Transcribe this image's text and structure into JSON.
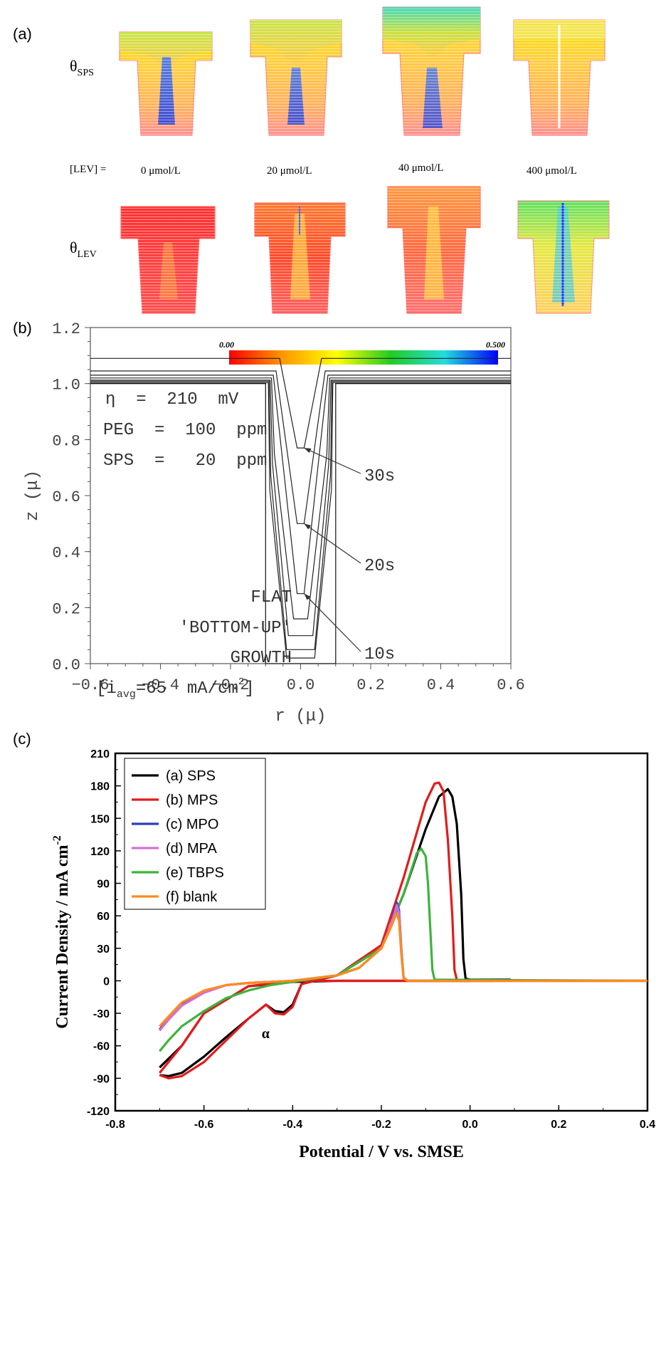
{
  "panel_a": {
    "label": "(a)",
    "row1_label": "θ",
    "row1_sub": "SPS",
    "row2_label": "θ",
    "row2_sub": "LEV",
    "lev_prefix": "[LEV] =",
    "concentrations": [
      "0 μmol/L",
      "20 μmol/L",
      "40 μmol/L",
      "400 μmol/L"
    ],
    "colorbar_min": "0.00",
    "colorbar_max": "0.500"
  },
  "panel_b": {
    "label": "(b)",
    "annot_eta": "η  =  210  mV",
    "annot_peg": "PEG  =  100  ppm",
    "annot_sps": "SPS  =   20  ppm",
    "annot_flat": "FLAT",
    "annot_bottomup": "'BOTTOM-UP'",
    "annot_growth": "GROWTH",
    "annot_iavg_prefix": "[i",
    "annot_iavg_sub": "avg",
    "annot_iavg_main": "=65  mA/cm",
    "annot_iavg_sup": "2",
    "annot_iavg_close": "]",
    "time_labels": [
      "30s",
      "20s",
      "10s"
    ]
  },
  "panel_c": {
    "label": "(c)",
    "alpha": "α"
  },
  "chart_data": [
    {
      "type": "line",
      "title": "",
      "xlabel": "r (μ)",
      "ylabel": "z (μ)",
      "xlim": [
        -0.6,
        0.6
      ],
      "ylim": [
        0.0,
        1.2
      ],
      "xticks": [
        "−0.6",
        "−0.4",
        "−0.2",
        "0.0",
        "0.2",
        "0.4",
        "0.6"
      ],
      "yticks": [
        "0.0",
        "0.2",
        "0.4",
        "0.6",
        "0.8",
        "1.0",
        "1.2"
      ],
      "grid": false,
      "series": [
        {
          "x": [
            -0.6,
            -0.1,
            -0.1,
            0.1,
            0.1,
            0.6
          ],
          "y": [
            1.0,
            1.0,
            0.0,
            0.0,
            1.0,
            1.0
          ]
        },
        {
          "x": [
            -0.6,
            -0.092,
            -0.088,
            -0.04,
            0.04,
            0.088,
            0.092,
            0.6
          ],
          "y": [
            1.003,
            1.003,
            0.62,
            0.02,
            0.02,
            0.62,
            1.003,
            1.003
          ]
        },
        {
          "x": [
            -0.6,
            -0.09,
            -0.085,
            -0.04,
            0.04,
            0.085,
            0.09,
            0.6
          ],
          "y": [
            1.008,
            1.008,
            0.67,
            0.05,
            0.05,
            0.67,
            1.008,
            1.008
          ]
        },
        {
          "x": [
            -0.6,
            -0.087,
            -0.08,
            -0.035,
            0.035,
            0.08,
            0.087,
            0.6
          ],
          "y": [
            1.012,
            1.012,
            0.71,
            0.1,
            0.1,
            0.71,
            1.012,
            1.012
          ]
        },
        {
          "x": [
            -0.6,
            -0.083,
            -0.075,
            -0.02,
            0.02,
            0.075,
            0.083,
            0.6
          ],
          "y": [
            1.02,
            1.02,
            0.75,
            0.16,
            0.16,
            0.75,
            1.02,
            1.02
          ]
        },
        {
          "x": [
            -0.6,
            -0.078,
            -0.01,
            0.01,
            0.078,
            0.6
          ],
          "y": [
            1.03,
            1.03,
            0.25,
            0.25,
            1.03,
            1.03
          ]
        },
        {
          "x": [
            -0.6,
            -0.07,
            -0.01,
            0.01,
            0.07,
            0.6
          ],
          "y": [
            1.045,
            1.045,
            0.5,
            0.5,
            1.045,
            1.045
          ]
        },
        {
          "x": [
            -0.6,
            -0.06,
            -0.01,
            0.01,
            0.06,
            0.6
          ],
          "y": [
            1.09,
            1.09,
            0.77,
            0.77,
            1.09,
            1.09
          ]
        }
      ]
    },
    {
      "type": "line",
      "title": "",
      "xlabel": "Potential / V vs. SMSE",
      "ylabel": "Current Density / mA cm",
      "ylabel_sup": "-2",
      "xlim": [
        -0.8,
        0.4
      ],
      "ylim": [
        -120,
        210
      ],
      "xticks": [
        "-0.8",
        "-0.6",
        "-0.4",
        "-0.2",
        "0.0",
        "0.2",
        "0.4"
      ],
      "yticks": [
        "-120",
        "-90",
        "-60",
        "-30",
        "0",
        "30",
        "60",
        "90",
        "120",
        "150",
        "180",
        "210"
      ],
      "grid": false,
      "legend_position": "top-left",
      "series": [
        {
          "name": "(a) SPS",
          "color": "#000000",
          "x": [
            -0.7,
            -0.68,
            -0.65,
            -0.6,
            -0.55,
            -0.5,
            -0.46,
            -0.44,
            -0.42,
            -0.4,
            -0.38,
            -0.3,
            -0.2,
            -0.15,
            -0.1,
            -0.07,
            -0.05,
            -0.04,
            -0.03,
            -0.02,
            -0.015,
            -0.01,
            0.0,
            0.05,
            0.09,
            0.05,
            0.0,
            -0.05,
            -0.1,
            -0.2,
            -0.3,
            -0.4,
            -0.5,
            -0.6,
            -0.65,
            -0.7
          ],
          "y": [
            -87,
            -88,
            -85,
            -70,
            -52,
            -35,
            -22,
            -28,
            -29,
            -22,
            -3,
            5,
            30,
            80,
            140,
            170,
            177,
            170,
            145,
            80,
            20,
            2,
            1,
            1,
            1,
            0,
            0,
            0,
            0,
            0,
            0,
            -1,
            -5,
            -30,
            -60,
            -80
          ]
        },
        {
          "name": "(b) MPS",
          "color": "#e41a1c",
          "x": [
            -0.7,
            -0.68,
            -0.65,
            -0.6,
            -0.55,
            -0.5,
            -0.46,
            -0.44,
            -0.42,
            -0.4,
            -0.38,
            -0.3,
            -0.2,
            -0.15,
            -0.1,
            -0.08,
            -0.07,
            -0.06,
            -0.05,
            -0.04,
            -0.035,
            -0.03,
            -0.02,
            0.0,
            -0.1,
            -0.2,
            -0.3,
            -0.4,
            -0.5,
            -0.6,
            -0.65,
            -0.7
          ],
          "y": [
            -87,
            -90,
            -88,
            -75,
            -55,
            -35,
            -22,
            -30,
            -31,
            -24,
            -3,
            5,
            33,
            95,
            165,
            182,
            183,
            175,
            130,
            60,
            10,
            1,
            0,
            0,
            0,
            0,
            0,
            0,
            -5,
            -30,
            -60,
            -85
          ]
        },
        {
          "name": "(c) MPO",
          "color": "#2b3fbf",
          "x": [
            -0.7,
            -0.68,
            -0.65,
            -0.6,
            -0.55,
            -0.5,
            -0.45,
            -0.4,
            -0.3,
            -0.25,
            -0.2,
            -0.18,
            -0.17,
            -0.165,
            -0.16,
            -0.155,
            -0.15,
            -0.14,
            0.4
          ],
          "y": [
            -45,
            -35,
            -22,
            -10,
            -4,
            -2,
            -1,
            0,
            5,
            12,
            30,
            50,
            65,
            72,
            65,
            30,
            3,
            0,
            0
          ]
        },
        {
          "name": "(d) MPA",
          "color": "#d070d8",
          "x": [
            -0.7,
            -0.68,
            -0.65,
            -0.6,
            -0.55,
            -0.5,
            -0.45,
            -0.4,
            -0.3,
            -0.25,
            -0.2,
            -0.18,
            -0.17,
            -0.165,
            -0.16,
            -0.155,
            -0.15,
            -0.14,
            0.4
          ],
          "y": [
            -46,
            -36,
            -23,
            -11,
            -4,
            -2,
            -1,
            0,
            5,
            12,
            30,
            50,
            63,
            70,
            62,
            28,
            3,
            0,
            0
          ]
        },
        {
          "name": "(e) TBPS",
          "color": "#3cb43c",
          "x": [
            -0.7,
            -0.68,
            -0.65,
            -0.6,
            -0.55,
            -0.5,
            -0.45,
            -0.4,
            -0.3,
            -0.2,
            -0.15,
            -0.12,
            -0.11,
            -0.1,
            -0.095,
            -0.09,
            -0.085,
            -0.08,
            0.4
          ],
          "y": [
            -65,
            -55,
            -42,
            -28,
            -16,
            -9,
            -4,
            -1,
            5,
            30,
            80,
            118,
            122,
            115,
            90,
            50,
            10,
            1,
            0
          ]
        },
        {
          "name": "(f) blank",
          "color": "#ff8c1a",
          "x": [
            -0.7,
            -0.68,
            -0.65,
            -0.6,
            -0.55,
            -0.5,
            -0.45,
            -0.4,
            -0.3,
            -0.25,
            -0.2,
            -0.18,
            -0.17,
            -0.165,
            -0.16,
            -0.155,
            -0.15,
            -0.14,
            0.4
          ],
          "y": [
            -42,
            -33,
            -20,
            -9,
            -4,
            -2,
            -1,
            0,
            5,
            12,
            30,
            48,
            58,
            62,
            55,
            25,
            2,
            0,
            0
          ]
        }
      ]
    }
  ]
}
